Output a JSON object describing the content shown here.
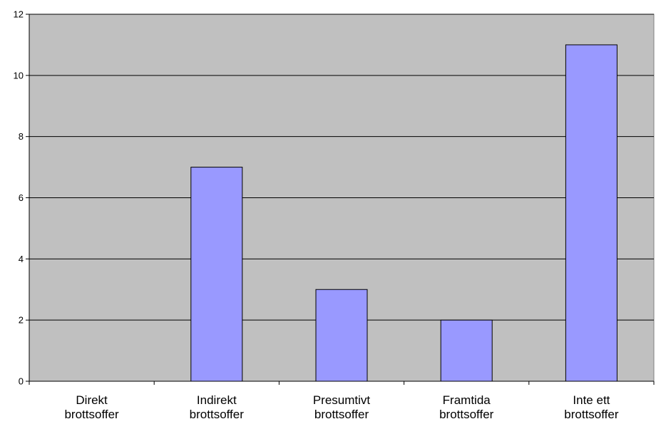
{
  "chart_data": {
    "type": "bar",
    "title": "",
    "xlabel": "",
    "ylabel": "",
    "categories": [
      [
        "Direkt",
        "brottsoffer"
      ],
      [
        "Indirekt",
        "brottsoffer"
      ],
      [
        "Presumtivt",
        "brottsoffer"
      ],
      [
        "Framtida",
        "brottsoffer"
      ],
      [
        "Inte ett",
        "brottsoffer"
      ]
    ],
    "values": [
      0,
      7,
      3,
      2,
      11
    ],
    "ylim": [
      0,
      12
    ],
    "yticks": [
      0,
      2,
      4,
      6,
      8,
      10,
      12
    ],
    "grid": true,
    "legend": "none",
    "colors": {
      "plot_background": "#c0c0c0",
      "bar_fill": "#9999ff",
      "bar_stroke": "#000000",
      "gridline": "#000000"
    }
  }
}
